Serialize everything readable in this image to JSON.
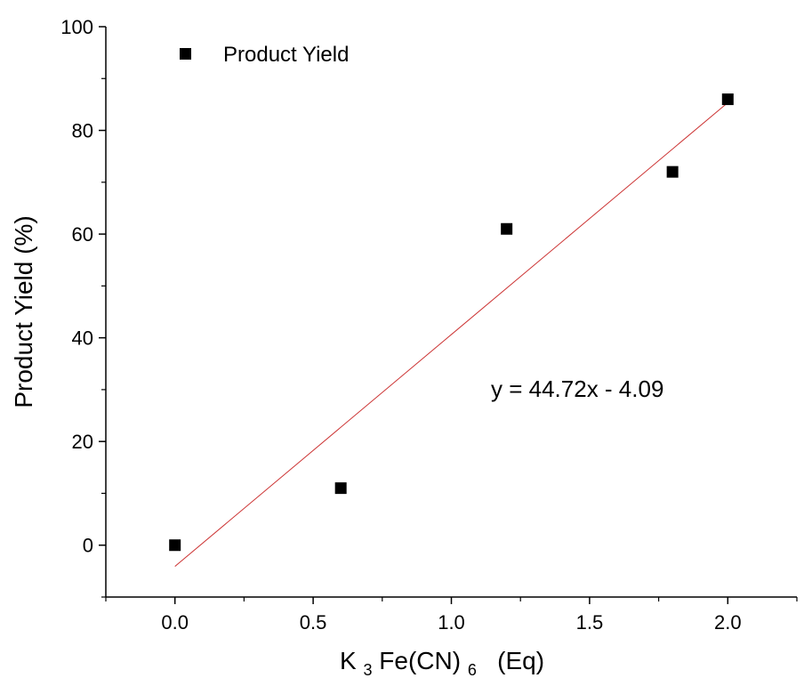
{
  "chart_data": {
    "type": "scatter",
    "series": [
      {
        "name": "Product Yield",
        "x": [
          0.0,
          0.6,
          1.2,
          1.8,
          2.0
        ],
        "y": [
          0,
          11,
          61,
          72,
          86
        ],
        "marker": "square",
        "color": "#000000"
      }
    ],
    "fit_line": {
      "slope": 44.72,
      "intercept": -4.09,
      "x_range": [
        0.0,
        2.0
      ],
      "color": "#cc3333"
    },
    "annotation": "y = 44.72x - 4.09",
    "xlabel_parts": [
      "K",
      "3",
      "Fe(CN)",
      "6",
      "  (Eq)"
    ],
    "ylabel": "Product Yield (%)",
    "xlim": [
      -0.25,
      2.25
    ],
    "ylim": [
      -10,
      100
    ],
    "xticks": [
      0.0,
      0.5,
      1.0,
      1.5,
      2.0
    ],
    "xtick_labels": [
      "0.0",
      "0.5",
      "1.0",
      "1.5",
      "2.0"
    ],
    "yticks": [
      0,
      20,
      40,
      60,
      80,
      100
    ],
    "ytick_labels": [
      "0",
      "20",
      "40",
      "60",
      "80",
      "100"
    ],
    "legend_label": "Product Yield",
    "legend_position": "top-left",
    "grid": false
  }
}
